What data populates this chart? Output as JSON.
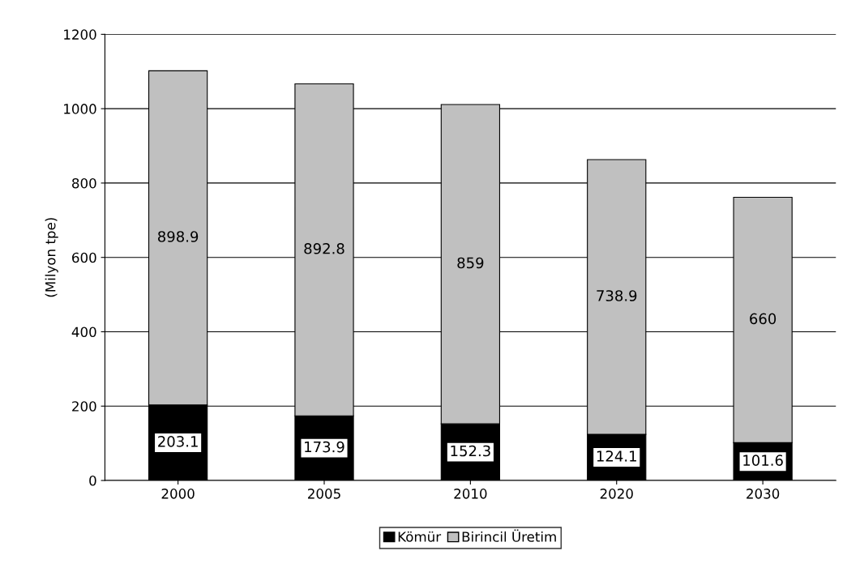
{
  "chart_data": {
    "type": "bar",
    "stacked": true,
    "ylabel": "(Milyon tpe)",
    "categories": [
      "2000",
      "2005",
      "2010",
      "2020",
      "2030"
    ],
    "series": [
      {
        "name": "Kömür",
        "color": "#000000",
        "values": [
          203.1,
          173.9,
          152.3,
          124.1,
          101.6
        ]
      },
      {
        "name": "Birincil Üretim",
        "color": "#c0c0c0",
        "values": [
          898.9,
          892.8,
          859,
          738.9,
          660
        ]
      }
    ],
    "value_labels": [
      [
        "203.1",
        "173.9",
        "152.3",
        "124.1",
        "101.6"
      ],
      [
        "898.9",
        "892.8",
        "859",
        "738.9",
        "660"
      ]
    ],
    "ylim": [
      0,
      1200
    ],
    "yticks": [
      0,
      200,
      400,
      600,
      800,
      1000,
      1200
    ],
    "grid": "y",
    "legend": "bottom"
  }
}
